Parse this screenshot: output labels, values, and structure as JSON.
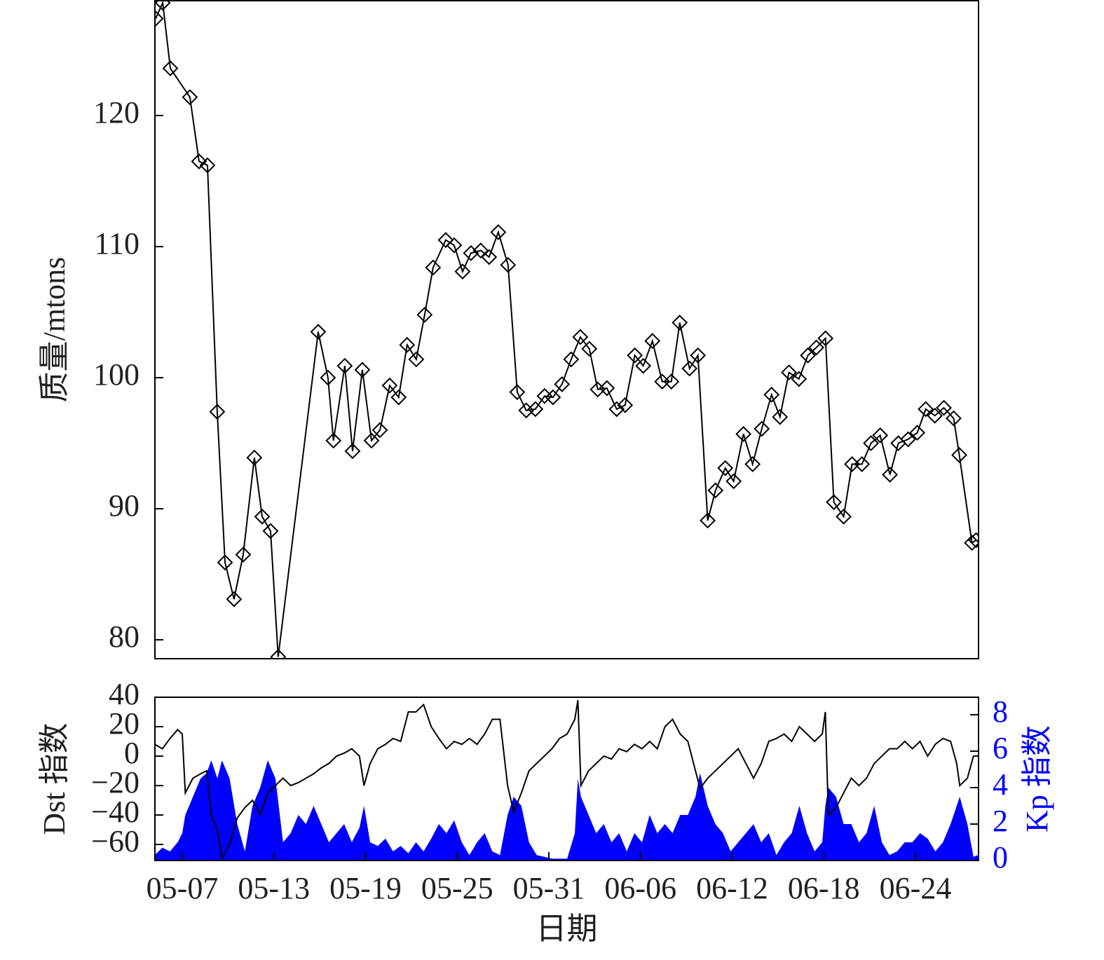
{
  "chart_data": [
    {
      "type": "line",
      "ylabel": "质量/mtons",
      "x": [
        5.26,
        5.72,
        6.22,
        7.5,
        8.1,
        8.65,
        9.29,
        9.8,
        10.39,
        10.99,
        11.72,
        12.23,
        12.78,
        13.28,
        15.9,
        16.54,
        16.9,
        17.64,
        18.15,
        18.79,
        19.39,
        19.94,
        20.58,
        21.17,
        21.72,
        22.32,
        22.87,
        23.42,
        24.25,
        24.8,
        25.35,
        25.9,
        26.54,
        27.09,
        27.69,
        28.33,
        28.93,
        29.52,
        30.12,
        30.72,
        31.27,
        31.86,
        32.46,
        33.06,
        33.65,
        34.2,
        34.8,
        35.44,
        35.99,
        36.63,
        37.18,
        37.78,
        38.42,
        39.02,
        39.57,
        40.21,
        40.76,
        41.4,
        41.91,
        42.55,
        43.1,
        43.74,
        44.34,
        44.94,
        45.58,
        46.13,
        46.72,
        47.37,
        47.96,
        48.51,
        49.11,
        49.66,
        50.3,
        50.85,
        51.5,
        52.09,
        52.69,
        53.33,
        53.88,
        54.52,
        55.12,
        55.67,
        56.27,
        56.86,
        57.5,
        57.87,
        58.7,
        58.97
      ],
      "series": [
        {
          "color": "#000000",
          "marker": "diamond",
          "values": [
            127.4,
            128.6,
            123.6,
            121.4,
            116.5,
            116.2,
            97.4,
            85.9,
            83.1,
            86.5,
            93.9,
            89.4,
            88.3,
            78.7,
            103.5,
            100.0,
            95.2,
            100.9,
            94.4,
            100.6,
            95.2,
            96.0,
            99.4,
            98.5,
            102.5,
            101.4,
            104.8,
            108.4,
            110.5,
            110.1,
            108.1,
            109.5,
            109.7,
            109.2,
            111.1,
            108.6,
            98.9,
            97.5,
            97.6,
            98.6,
            98.5,
            99.5,
            101.4,
            103.1,
            102.2,
            99.1,
            99.2,
            97.6,
            97.9,
            101.7,
            100.9,
            102.8,
            99.7,
            99.7,
            104.2,
            100.7,
            101.7,
            89.1,
            91.4,
            93.1,
            92.1,
            95.7,
            93.4,
            96.1,
            98.7,
            97.0,
            100.4,
            99.9,
            101.7,
            102.3,
            103.0,
            90.5,
            89.4,
            93.4,
            93.4,
            95.0,
            95.6,
            92.6,
            95.0,
            95.3,
            95.8,
            97.6,
            97.1,
            97.7,
            96.9,
            94.1,
            87.4,
            87.6
          ]
        }
      ],
      "xlim": [
        5.21,
        59.13
      ],
      "ylim": [
        78.56,
        128.76
      ],
      "yticks": [
        80,
        90,
        100,
        110,
        120
      ]
    },
    {
      "type": "line",
      "xlabel": "日期",
      "ylabel": "Dst 指数",
      "y2label": "Kp 指数",
      "y2color": "#0000ff",
      "x": [
        5.2,
        5.7,
        6.2,
        6.7,
        7.0,
        7.2,
        7.7,
        8.2,
        8.6,
        8.9,
        9.3,
        9.6,
        10.1,
        10.6,
        11.1,
        11.6,
        12.1,
        12.6,
        13.1,
        13.6,
        14.1,
        14.6,
        15.1,
        15.6,
        16.1,
        16.6,
        17.1,
        17.6,
        18.1,
        18.6,
        18.9,
        19.3,
        19.8,
        20.3,
        20.8,
        21.3,
        21.8,
        22.3,
        22.8,
        23.3,
        23.8,
        24.3,
        24.8,
        25.3,
        25.8,
        26.3,
        26.8,
        27.3,
        27.8,
        28.3,
        28.7,
        29.2,
        29.7,
        30.2,
        30.7,
        31.2,
        31.7,
        32.2,
        32.7,
        32.9,
        33.1,
        33.6,
        34.1,
        34.6,
        35.1,
        35.6,
        36.1,
        36.6,
        37.1,
        37.6,
        38.1,
        38.6,
        39.1,
        39.6,
        40.1,
        40.6,
        40.9,
        41.4,
        41.9,
        42.4,
        42.9,
        43.4,
        43.9,
        44.4,
        44.9,
        45.4,
        45.9,
        46.4,
        46.9,
        47.4,
        47.9,
        48.4,
        48.9,
        49.1,
        49.3,
        49.8,
        50.3,
        50.8,
        51.3,
        51.8,
        52.3,
        52.8,
        53.3,
        53.8,
        54.3,
        54.8,
        55.3,
        55.8,
        56.3,
        56.8,
        57.3,
        57.7,
        57.9,
        58.4,
        58.8,
        59.1
      ],
      "series": [
        {
          "color": "#0000ff",
          "axis": "y2",
          "area": true,
          "values": [
            0.3,
            0.7,
            0.5,
            1.0,
            1.5,
            2.5,
            3.5,
            4.5,
            4.8,
            5.5,
            4.5,
            5.5,
            4.5,
            2.0,
            0.5,
            3.0,
            4.0,
            5.5,
            4.5,
            1.0,
            1.5,
            2.5,
            2.0,
            3.0,
            2.0,
            1.0,
            1.5,
            2.0,
            1.0,
            1.8,
            3.0,
            1.0,
            0.8,
            1.2,
            0.5,
            0.8,
            0.4,
            1.0,
            0.5,
            1.2,
            2.0,
            1.5,
            2.2,
            1.0,
            0.3,
            1.0,
            1.5,
            0.5,
            0.3,
            2.5,
            3.5,
            3.0,
            1.0,
            0.3,
            0.2,
            0.1,
            0.1,
            0.1,
            1.5,
            4.5,
            3.5,
            2.5,
            1.5,
            2.0,
            1.0,
            1.5,
            0.5,
            1.5,
            1.0,
            2.5,
            1.5,
            2.0,
            1.5,
            2.5,
            2.5,
            3.5,
            4.8,
            3.0,
            2.0,
            1.5,
            0.5,
            1.0,
            1.5,
            2.0,
            1.0,
            1.5,
            0.3,
            1.0,
            1.5,
            3.0,
            1.5,
            0.5,
            1.0,
            3.0,
            4.0,
            3.5,
            2.0,
            2.0,
            1.0,
            1.5,
            3.0,
            1.0,
            0.3,
            0.5,
            1.0,
            1.0,
            1.5,
            1.2,
            0.5,
            1.0,
            2.0,
            3.0,
            3.5,
            2.0,
            0.2,
            0.3
          ]
        },
        {
          "color": "#000000",
          "values": [
            8,
            5,
            12,
            18,
            15,
            -25,
            -15,
            -12,
            -10,
            -40,
            -50,
            -70,
            -60,
            -42,
            -35,
            -30,
            -40,
            -25,
            -20,
            -15,
            -20,
            -18,
            -15,
            -12,
            -8,
            -5,
            0,
            2,
            5,
            0,
            -20,
            -5,
            5,
            8,
            12,
            10,
            30,
            30,
            35,
            20,
            12,
            5,
            10,
            8,
            12,
            8,
            15,
            25,
            25,
            -20,
            -38,
            -25,
            -10,
            -5,
            0,
            5,
            12,
            15,
            25,
            38,
            -20,
            -10,
            -5,
            0,
            -2,
            5,
            3,
            8,
            5,
            10,
            5,
            20,
            25,
            15,
            10,
            -10,
            -22,
            -15,
            -10,
            -5,
            0,
            5,
            -5,
            -15,
            -5,
            10,
            12,
            15,
            10,
            20,
            15,
            10,
            15,
            30,
            -40,
            -35,
            -25,
            -15,
            -20,
            -15,
            -5,
            0,
            5,
            5,
            10,
            5,
            10,
            0,
            8,
            12,
            10,
            -5,
            -20,
            -15,
            0,
            0
          ]
        }
      ],
      "xlim": [
        5.21,
        59.13
      ],
      "xticks": [
        {
          "value": 7,
          "label": "05-07"
        },
        {
          "value": 13,
          "label": "05-13"
        },
        {
          "value": 19,
          "label": "05-19"
        },
        {
          "value": 25,
          "label": "05-25"
        },
        {
          "value": 31,
          "label": "05-31"
        },
        {
          "value": 37,
          "label": "06-06"
        },
        {
          "value": 43,
          "label": "06-12"
        },
        {
          "value": 49,
          "label": "06-18"
        },
        {
          "value": 55,
          "label": "06-24"
        }
      ],
      "ylim": [
        -70.9,
        40
      ],
      "yticks": [
        40,
        20,
        0,
        {
          "value": -20,
          "label": "−20"
        },
        {
          "value": -40,
          "label": "−40"
        },
        {
          "value": -60,
          "label": "−60"
        }
      ],
      "y2lim": [
        0,
        8.96
      ],
      "y2ticks": [
        0,
        2,
        4,
        6,
        8
      ]
    }
  ]
}
